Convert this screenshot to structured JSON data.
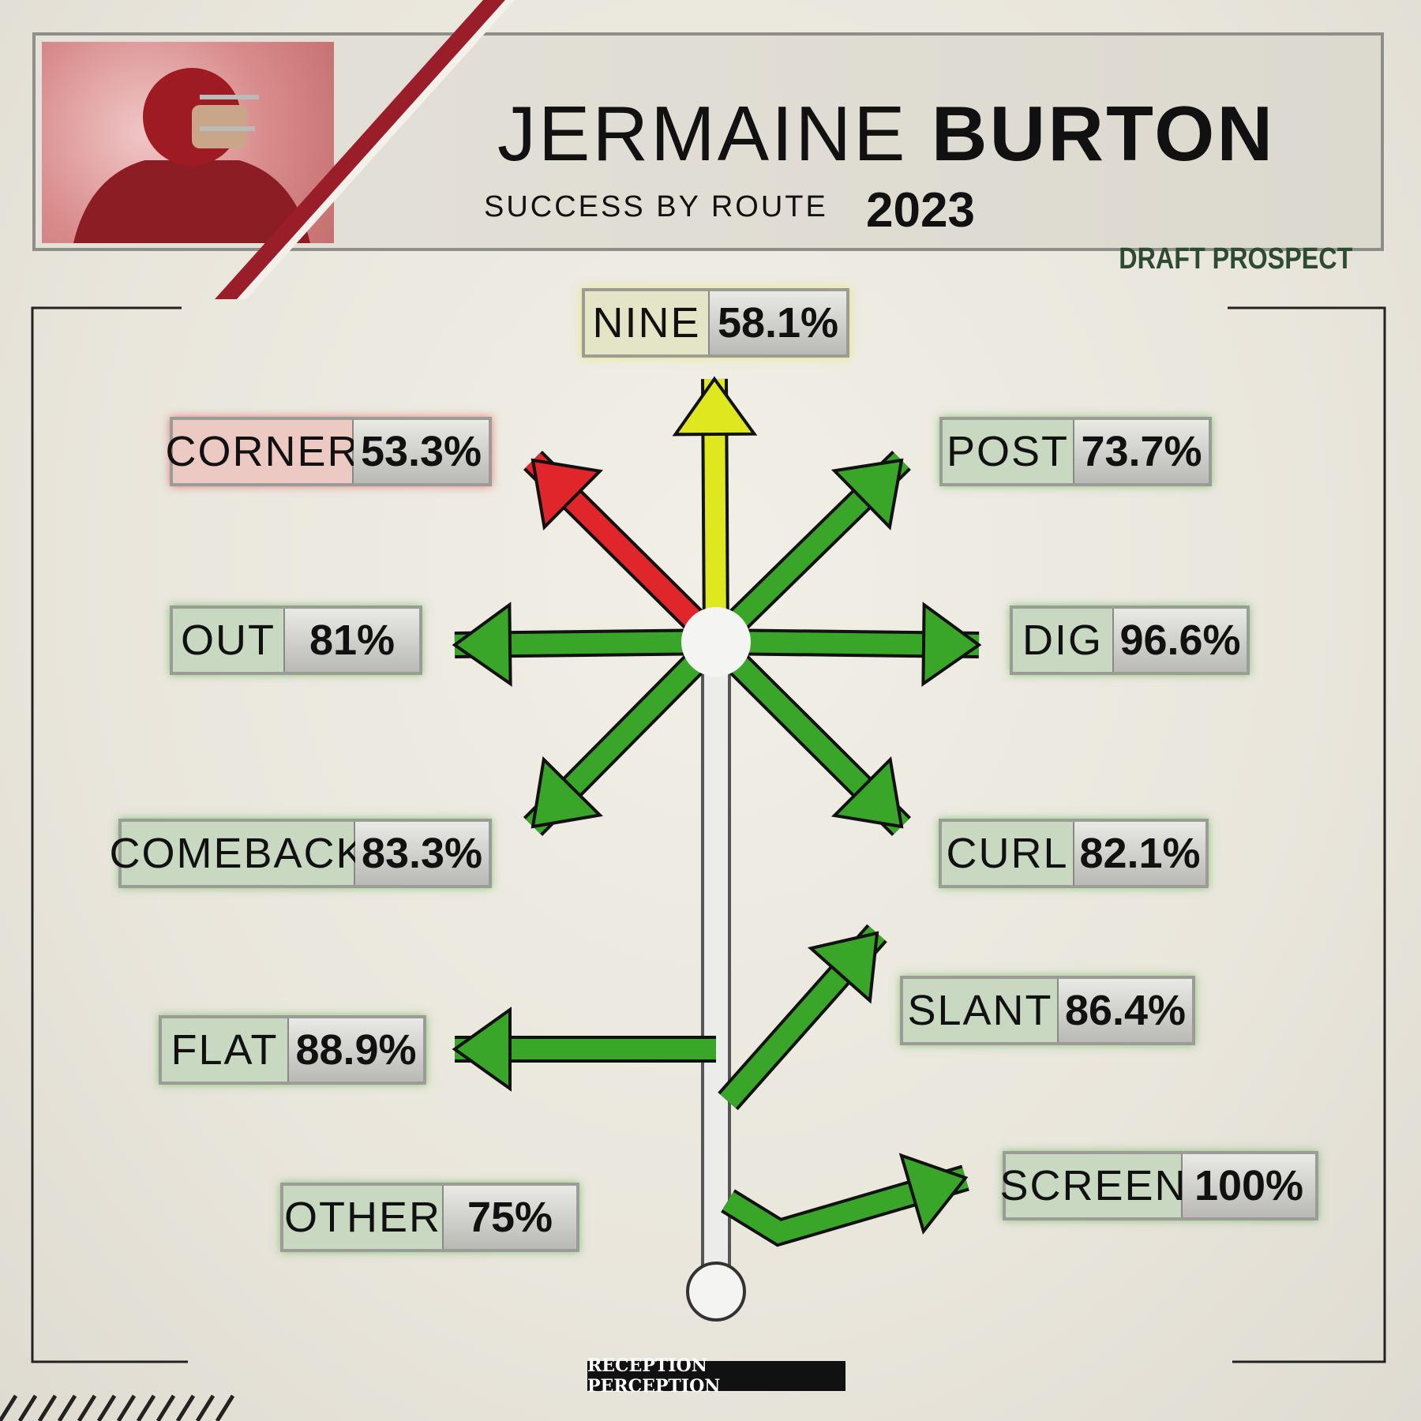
{
  "header": {
    "first_name": "JERMAINE",
    "last_name": "BURTON",
    "subtitle": "SUCCESS BY ROUTE",
    "year": "2023",
    "tag": "DRAFT PROSPECT"
  },
  "routes": [
    {
      "name": "NINE",
      "value": "58.1%"
    },
    {
      "name": "CORNER",
      "value": "53.3%"
    },
    {
      "name": "POST",
      "value": "73.7%"
    },
    {
      "name": "OUT",
      "value": "81%"
    },
    {
      "name": "DIG",
      "value": "96.6%"
    },
    {
      "name": "COMEBACK",
      "value": "83.3%"
    },
    {
      "name": "CURL",
      "value": "82.1%"
    },
    {
      "name": "FLAT",
      "value": "88.9%"
    },
    {
      "name": "SLANT",
      "value": "86.4%"
    },
    {
      "name": "OTHER",
      "value": "75%"
    },
    {
      "name": "SCREEN",
      "value": "100%"
    }
  ],
  "footer": {
    "logo": "RECEPTION PERCEPTION"
  }
}
